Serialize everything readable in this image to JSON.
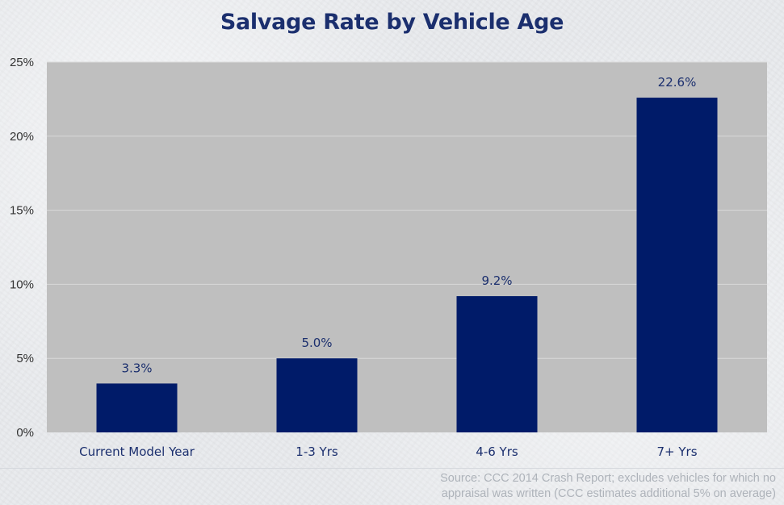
{
  "chart_data": {
    "type": "bar",
    "title": "Salvage Rate by Vehicle Age",
    "categories": [
      "Current Model Year",
      "1-3 Yrs",
      "4-6 Yrs",
      "7+ Yrs"
    ],
    "values": [
      3.3,
      5.0,
      9.2,
      22.6
    ],
    "data_labels": [
      "3.3%",
      "5.0%",
      "9.2%",
      "22.6%"
    ],
    "xlabel": "",
    "ylabel": "",
    "ylim": [
      0,
      25
    ],
    "yticks": [
      0,
      5,
      10,
      15,
      20,
      25
    ],
    "ytick_labels": [
      "0%",
      "5%",
      "10%",
      "15%",
      "20%",
      "25%"
    ],
    "grid": true,
    "legend": "none",
    "colors": {
      "bar": "#001b69",
      "plot_background": "#bfbfbf",
      "gridline": "#d9d9d9",
      "title": "#1b2f6e"
    }
  },
  "source_note": {
    "line1": "Source: CCC 2014 Crash Report; excludes vehicles for which no",
    "line2": "appraisal was written (CCC estimates additional 5% on average)"
  }
}
